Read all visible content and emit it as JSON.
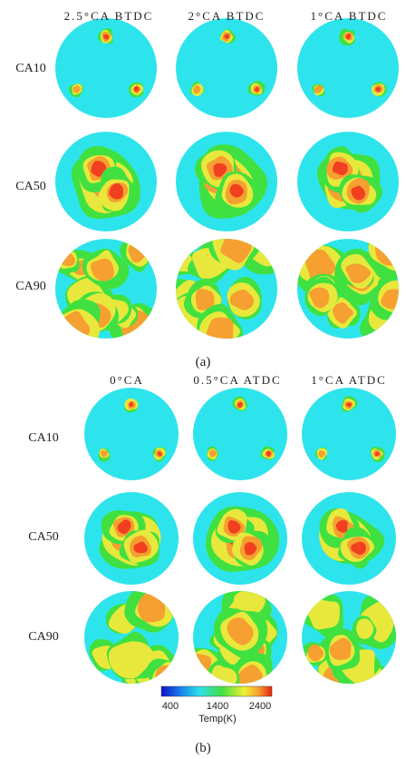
{
  "panel_a": {
    "column_headers": [
      "2.5°CA BTDC",
      "2°CA BTDC",
      "1°CA BTDC"
    ],
    "row_labels": [
      "CA10",
      "CA50",
      "CA90"
    ],
    "caption": "(a)"
  },
  "panel_b": {
    "column_headers": [
      "0°CA",
      "0.5°CA ATDC",
      "1°CA ATDC"
    ],
    "row_labels": [
      "CA10",
      "CA50",
      "CA90"
    ],
    "caption": "(b)"
  },
  "colorbar": {
    "ticks": [
      "400",
      "1400",
      "2400"
    ],
    "label": "Temp(K)"
  }
}
